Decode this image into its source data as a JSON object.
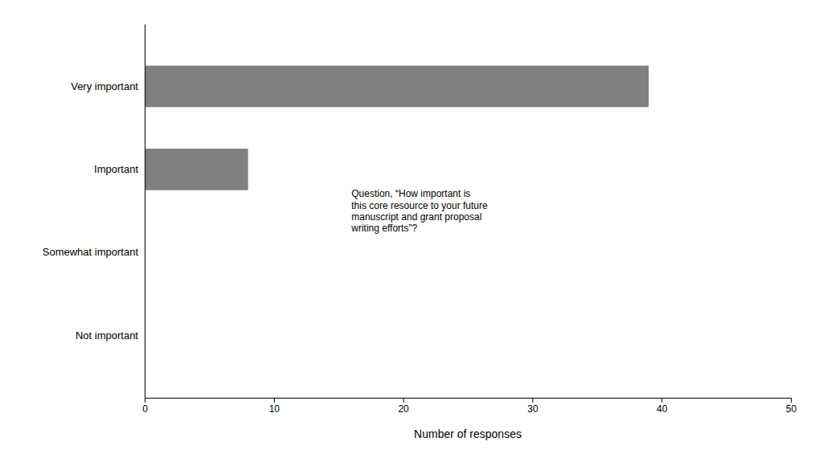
{
  "chart_data": {
    "type": "bar",
    "orientation": "horizontal",
    "categories": [
      "Not important",
      "Somewhat important",
      "Important",
      "Very important"
    ],
    "values": [
      0,
      0,
      8,
      39
    ],
    "color": "#808080",
    "xlim": [
      0,
      50
    ],
    "xticks": [
      0,
      10,
      20,
      30,
      40,
      50
    ],
    "xlabel": "Number of responses",
    "annotation": "Question, “How important is\nthis core resource to your future\nmanuscript and grant proposal\nwriting efforts”?",
    "grid": false
  }
}
